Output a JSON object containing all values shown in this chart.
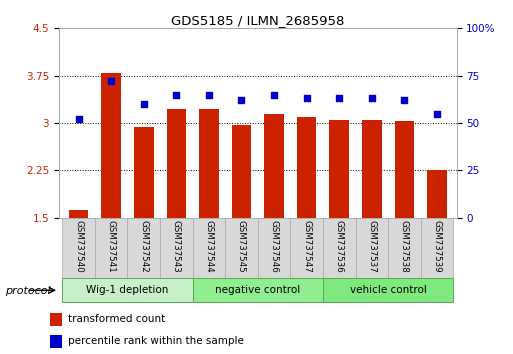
{
  "title": "GDS5185 / ILMN_2685958",
  "categories": [
    "GSM737540",
    "GSM737541",
    "GSM737542",
    "GSM737543",
    "GSM737544",
    "GSM737545",
    "GSM737546",
    "GSM737547",
    "GSM737536",
    "GSM737537",
    "GSM737538",
    "GSM737539"
  ],
  "bar_values": [
    1.62,
    3.79,
    2.93,
    3.22,
    3.22,
    2.97,
    3.14,
    3.09,
    3.05,
    3.05,
    3.03,
    2.25
  ],
  "scatter_values": [
    52,
    72,
    60,
    65,
    65,
    62,
    65,
    63,
    63,
    63,
    62,
    55
  ],
  "bar_bottom": 1.5,
  "ylim_left": [
    1.5,
    4.5
  ],
  "ylim_right": [
    0,
    100
  ],
  "yticks_left": [
    1.5,
    2.25,
    3.0,
    3.75,
    4.5
  ],
  "yticks_right": [
    0,
    25,
    50,
    75,
    100
  ],
  "yticklabels_left": [
    "1.5",
    "2.25",
    "3",
    "3.75",
    "4.5"
  ],
  "yticklabels_right": [
    "0",
    "25",
    "50",
    "75",
    "100%"
  ],
  "bar_color": "#cc2200",
  "scatter_color": "#0000cc",
  "group_labels": [
    "Wig-1 depletion",
    "negative control",
    "vehicle control"
  ],
  "group_ranges": [
    [
      0,
      3
    ],
    [
      4,
      7
    ],
    [
      8,
      11
    ]
  ],
  "group_colors": [
    "#c8f0c8",
    "#90ee90",
    "#7fe87f"
  ],
  "protocol_label": "protocol",
  "legend_bar_label": "transformed count",
  "legend_scatter_label": "percentile rank within the sample",
  "background_color": "#ffffff",
  "tick_label_color_left": "#cc2200",
  "tick_label_color_right": "#0000cc",
  "bar_width": 0.6
}
